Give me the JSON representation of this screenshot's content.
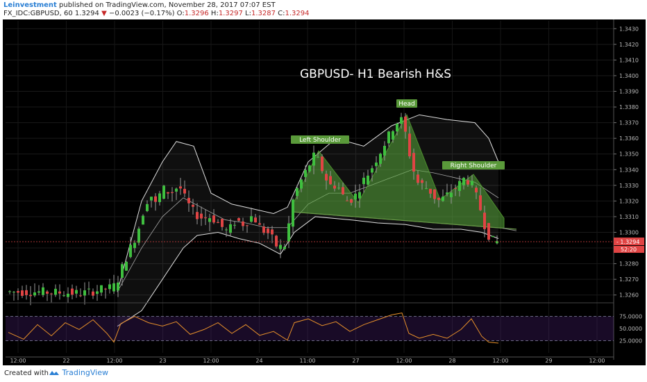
{
  "header": {
    "publisher": "Leinvestment",
    "published_text": " published on TradingView.com, November 28, 2017 07:07 EST",
    "symbol": "FX_IDC:GBPUSD, 60",
    "last": "1.3294",
    "change": "−0.0023 (−0.17%)",
    "o_label": "O:",
    "o_value": "1.3296",
    "h_label": "H:",
    "h_value": "1.3297",
    "l_label": "L:",
    "l_value": "1.3287",
    "c_label": "C:",
    "c_value": "1.3294"
  },
  "footer": {
    "created_with": "Created with",
    "brand": "TradingView"
  },
  "chart_data": {
    "type": "candlestick",
    "title": "GBPUSD- H1 Bearish H&S",
    "price_axis": {
      "ticks": [
        "1.3430",
        "1.3420",
        "1.3410",
        "1.3400",
        "1.3390",
        "1.3380",
        "1.3370",
        "1.3360",
        "1.3350",
        "1.3340",
        "1.3330",
        "1.3320",
        "1.3310",
        "1.3300",
        "1.3290",
        "1.3280",
        "1.3270",
        "1.3260"
      ],
      "range": [
        1.3255,
        1.3435
      ]
    },
    "time_axis": {
      "ticks": [
        "12:00",
        "22",
        "12:00",
        "23",
        "12:00",
        "24",
        "11:00",
        "27",
        "12:00",
        "28",
        "12:00",
        "29",
        "12:00"
      ]
    },
    "last_price_label": "1.3294",
    "countdown_label": "52:20",
    "pattern_labels": {
      "left_shoulder": "Left Shoulder",
      "head": "Head",
      "right_shoulder": "Right Shoulder"
    },
    "neckline": [
      [
        418,
        1.3313
      ],
      [
        740,
        1.3302
      ]
    ],
    "pattern_points": [
      [
        418,
        1.3318
      ],
      [
        455,
        1.3352
      ],
      [
        512,
        1.3319
      ],
      [
        582,
        1.3375
      ],
      [
        630,
        1.3321
      ],
      [
        678,
        1.3337
      ],
      [
        722,
        1.3309
      ]
    ],
    "candles_seed": [
      {
        "i": 0,
        "o": 1.3262,
        "c": 1.3263
      },
      {
        "i": 1,
        "o": 1.3263,
        "c": 1.3262
      }
    ],
    "price_path": [
      [
        8,
        1.3262
      ],
      [
        60,
        1.3262
      ],
      [
        120,
        1.3261
      ],
      [
        165,
        1.3265
      ],
      [
        172,
        1.327
      ],
      [
        180,
        1.328
      ],
      [
        190,
        1.329
      ],
      [
        200,
        1.33
      ],
      [
        210,
        1.3316
      ],
      [
        218,
        1.3325
      ],
      [
        226,
        1.3318
      ],
      [
        236,
        1.3328
      ],
      [
        248,
        1.3325
      ],
      [
        260,
        1.333
      ],
      [
        270,
        1.332
      ],
      [
        282,
        1.3312
      ],
      [
        294,
        1.3309
      ],
      [
        306,
        1.331
      ],
      [
        318,
        1.3305
      ],
      [
        330,
        1.33
      ],
      [
        342,
        1.3308
      ],
      [
        354,
        1.3305
      ],
      [
        366,
        1.3311
      ],
      [
        378,
        1.3302
      ],
      [
        390,
        1.3299
      ],
      [
        402,
        1.329
      ],
      [
        414,
        1.3292
      ],
      [
        422,
        1.3318
      ],
      [
        432,
        1.333
      ],
      [
        444,
        1.334
      ],
      [
        456,
        1.335
      ],
      [
        466,
        1.334
      ],
      [
        476,
        1.333
      ],
      [
        488,
        1.333
      ],
      [
        500,
        1.332
      ],
      [
        512,
        1.3322
      ],
      [
        524,
        1.3332
      ],
      [
        536,
        1.334
      ],
      [
        548,
        1.335
      ],
      [
        560,
        1.336
      ],
      [
        572,
        1.337
      ],
      [
        582,
        1.3372
      ],
      [
        592,
        1.335
      ],
      [
        602,
        1.3332
      ],
      [
        612,
        1.333
      ],
      [
        622,
        1.3326
      ],
      [
        632,
        1.332
      ],
      [
        642,
        1.3322
      ],
      [
        652,
        1.3326
      ],
      [
        662,
        1.333
      ],
      [
        672,
        1.3335
      ],
      [
        682,
        1.333
      ],
      [
        692,
        1.3318
      ],
      [
        700,
        1.3305
      ],
      [
        708,
        1.3296
      ],
      [
        714,
        1.3294
      ]
    ],
    "bb_upper": [
      [
        165,
        1.3262
      ],
      [
        200,
        1.332
      ],
      [
        230,
        1.3345
      ],
      [
        250,
        1.3358
      ],
      [
        275,
        1.3355
      ],
      [
        300,
        1.3325
      ],
      [
        330,
        1.3318
      ],
      [
        360,
        1.3315
      ],
      [
        390,
        1.3312
      ],
      [
        410,
        1.3316
      ],
      [
        440,
        1.3345
      ],
      [
        480,
        1.336
      ],
      [
        520,
        1.3355
      ],
      [
        560,
        1.3368
      ],
      [
        600,
        1.3375
      ],
      [
        640,
        1.3372
      ],
      [
        680,
        1.337
      ],
      [
        700,
        1.336
      ],
      [
        714,
        1.3345
      ]
    ],
    "bb_lower": [
      [
        165,
        1.324
      ],
      [
        200,
        1.325
      ],
      [
        230,
        1.327
      ],
      [
        260,
        1.329
      ],
      [
        280,
        1.3298
      ],
      [
        310,
        1.33
      ],
      [
        340,
        1.3296
      ],
      [
        370,
        1.3293
      ],
      [
        400,
        1.3286
      ],
      [
        420,
        1.33
      ],
      [
        450,
        1.331
      ],
      [
        500,
        1.3308
      ],
      [
        540,
        1.3306
      ],
      [
        580,
        1.3305
      ],
      [
        620,
        1.3302
      ],
      [
        660,
        1.3302
      ],
      [
        690,
        1.33
      ],
      [
        714,
        1.3296
      ]
    ],
    "bb_mid": [
      [
        165,
        1.3262
      ],
      [
        200,
        1.329
      ],
      [
        230,
        1.331
      ],
      [
        260,
        1.3322
      ],
      [
        290,
        1.3315
      ],
      [
        320,
        1.3308
      ],
      [
        350,
        1.3306
      ],
      [
        380,
        1.3303
      ],
      [
        410,
        1.3303
      ],
      [
        440,
        1.3318
      ],
      [
        470,
        1.3325
      ],
      [
        500,
        1.3325
      ],
      [
        530,
        1.333
      ],
      [
        560,
        1.3335
      ],
      [
        590,
        1.334
      ],
      [
        620,
        1.3338
      ],
      [
        650,
        1.3335
      ],
      [
        680,
        1.3332
      ],
      [
        714,
        1.3322
      ]
    ],
    "rsi_axis": {
      "ticks": [
        "75.0000",
        "50.0000",
        "25.0000"
      ],
      "range": [
        0,
        100
      ]
    },
    "rsi_path": [
      [
        8,
        42
      ],
      [
        30,
        28
      ],
      [
        50,
        58
      ],
      [
        70,
        35
      ],
      [
        90,
        62
      ],
      [
        110,
        48
      ],
      [
        130,
        68
      ],
      [
        150,
        40
      ],
      [
        160,
        22
      ],
      [
        170,
        60
      ],
      [
        190,
        75
      ],
      [
        210,
        62
      ],
      [
        230,
        55
      ],
      [
        250,
        64
      ],
      [
        270,
        38
      ],
      [
        290,
        48
      ],
      [
        310,
        62
      ],
      [
        330,
        40
      ],
      [
        350,
        58
      ],
      [
        370,
        36
      ],
      [
        390,
        44
      ],
      [
        410,
        26
      ],
      [
        420,
        62
      ],
      [
        440,
        70
      ],
      [
        460,
        56
      ],
      [
        480,
        64
      ],
      [
        500,
        44
      ],
      [
        520,
        58
      ],
      [
        540,
        68
      ],
      [
        560,
        78
      ],
      [
        575,
        82
      ],
      [
        585,
        40
      ],
      [
        600,
        30
      ],
      [
        620,
        38
      ],
      [
        640,
        30
      ],
      [
        660,
        48
      ],
      [
        675,
        70
      ],
      [
        690,
        34
      ],
      [
        700,
        22
      ],
      [
        714,
        20
      ]
    ]
  }
}
